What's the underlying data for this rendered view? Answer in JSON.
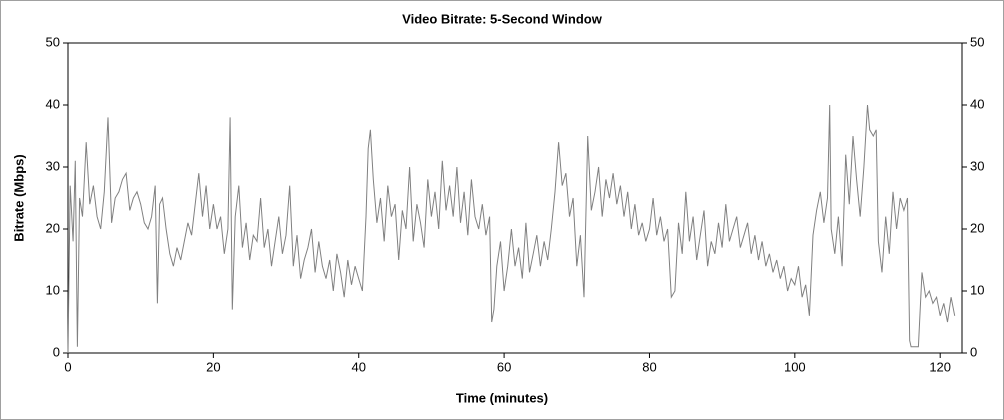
{
  "chart_data": {
    "type": "line",
    "title": "Video Bitrate: 5-Second Window",
    "x_label": "Time (minutes)",
    "y_label": "Bitrate (Mbps)",
    "xlim": [
      0,
      123
    ],
    "xticks": [
      0,
      20,
      40,
      60,
      80,
      100,
      120
    ],
    "ylim": [
      0,
      50
    ],
    "yticks": [
      0,
      10,
      20,
      30,
      40,
      50
    ],
    "right_axis_mirror": true,
    "series": [
      {
        "name": "Video Bitrate",
        "color": "#808080",
        "x": [
          0,
          0.3,
          0.7,
          1,
          1.3,
          1.6,
          2,
          2.5,
          3,
          3.5,
          4,
          4.5,
          5,
          5.5,
          6,
          6.5,
          7,
          7.5,
          8,
          8.5,
          9,
          9.5,
          10,
          10.5,
          11,
          11.5,
          12,
          12.3,
          12.6,
          13,
          13.5,
          14,
          14.5,
          15,
          15.5,
          16,
          16.5,
          17,
          17.5,
          18,
          18.5,
          19,
          19.5,
          20,
          20.5,
          21,
          21.5,
          22,
          22.3,
          22.6,
          23,
          23.5,
          24,
          24.5,
          25,
          25.5,
          26,
          26.5,
          27,
          27.5,
          28,
          28.5,
          29,
          29.5,
          30,
          30.5,
          31,
          31.5,
          32,
          32.5,
          33,
          33.5,
          34,
          34.5,
          35,
          35.5,
          36,
          36.5,
          37,
          37.5,
          38,
          38.5,
          39,
          39.5,
          40,
          40.5,
          41,
          41.3,
          41.6,
          42,
          42.5,
          43,
          43.5,
          44,
          44.5,
          45,
          45.5,
          46,
          46.5,
          47,
          47.5,
          48,
          48.5,
          49,
          49.5,
          50,
          50.5,
          51,
          51.5,
          52,
          52.5,
          53,
          53.5,
          54,
          54.5,
          55,
          55.5,
          56,
          56.5,
          57,
          57.5,
          58,
          58.3,
          58.6,
          59,
          59.5,
          60,
          60.5,
          61,
          61.5,
          62,
          62.5,
          63,
          63.5,
          64,
          64.5,
          65,
          65.5,
          66,
          66.5,
          67,
          67.5,
          68,
          68.5,
          69,
          69.5,
          70,
          70.5,
          71,
          71.5,
          72,
          72.5,
          73,
          73.5,
          74,
          74.5,
          75,
          75.5,
          76,
          76.5,
          77,
          77.5,
          78,
          78.5,
          79,
          79.5,
          80,
          80.5,
          81,
          81.5,
          82,
          82.5,
          83,
          83.5,
          84,
          84.5,
          85,
          85.5,
          86,
          86.5,
          87,
          87.5,
          88,
          88.5,
          89,
          89.5,
          90,
          90.5,
          91,
          91.5,
          92,
          92.5,
          93,
          93.5,
          94,
          94.5,
          95,
          95.5,
          96,
          96.5,
          97,
          97.5,
          98,
          98.5,
          99,
          99.5,
          100,
          100.5,
          101,
          101.5,
          102,
          102.5,
          103,
          103.5,
          104,
          104.5,
          104.8,
          105,
          105.5,
          106,
          106.5,
          107,
          107.5,
          108,
          108.5,
          109,
          109.5,
          110,
          110.3,
          110.8,
          111.2,
          111.5,
          112,
          112.5,
          113,
          113.5,
          114,
          114.5,
          115,
          115.5,
          115.8,
          116,
          116.5,
          117,
          117.5,
          118,
          118.5,
          119,
          119.5,
          120,
          120.5,
          121,
          121.5,
          122
        ],
        "values": [
          0,
          27,
          18,
          31,
          1,
          25,
          22,
          34,
          24,
          27,
          22,
          20,
          26,
          38,
          21,
          25,
          26,
          28,
          29,
          23,
          25,
          26,
          24,
          21,
          20,
          22,
          27,
          8,
          24,
          25,
          20,
          16,
          14,
          17,
          15,
          18,
          21,
          19,
          24,
          29,
          22,
          27,
          20,
          24,
          20,
          22,
          16,
          20,
          38,
          7,
          22,
          27,
          17,
          21,
          15,
          19,
          18,
          25,
          17,
          20,
          14,
          18,
          22,
          16,
          19,
          27,
          14,
          19,
          12,
          15,
          17,
          20,
          13,
          18,
          14,
          12,
          15,
          10,
          16,
          13,
          9,
          15,
          11,
          14,
          12,
          10,
          22,
          33,
          36,
          28,
          21,
          25,
          18,
          27,
          22,
          24,
          15,
          23,
          20,
          30,
          18,
          24,
          21,
          17,
          28,
          22,
          26,
          20,
          31,
          23,
          27,
          22,
          30,
          21,
          26,
          19,
          28,
          22,
          20,
          24,
          19,
          22,
          5,
          7,
          14,
          18,
          10,
          14,
          20,
          14,
          17,
          12,
          21,
          13,
          16,
          19,
          14,
          18,
          15,
          20,
          26,
          34,
          27,
          29,
          22,
          25,
          14,
          19,
          9,
          35,
          23,
          26,
          30,
          22,
          28,
          25,
          29,
          24,
          27,
          22,
          26,
          20,
          24,
          19,
          21,
          18,
          20,
          25,
          19,
          22,
          18,
          20,
          9,
          10,
          21,
          16,
          26,
          18,
          22,
          15,
          19,
          23,
          14,
          18,
          16,
          21,
          17,
          24,
          18,
          20,
          22,
          17,
          19,
          21,
          16,
          19,
          15,
          18,
          14,
          16,
          13,
          15,
          12,
          14,
          10,
          12,
          11,
          14,
          9,
          11,
          6,
          19,
          23,
          26,
          21,
          25,
          40,
          20,
          16,
          22,
          14,
          32,
          24,
          35,
          28,
          22,
          30,
          40,
          36,
          35,
          36,
          18,
          13,
          22,
          16,
          26,
          20,
          25,
          23,
          25,
          2,
          1,
          1,
          1,
          13,
          9,
          10,
          8,
          9,
          6,
          8,
          5,
          9,
          6
        ]
      }
    ]
  }
}
